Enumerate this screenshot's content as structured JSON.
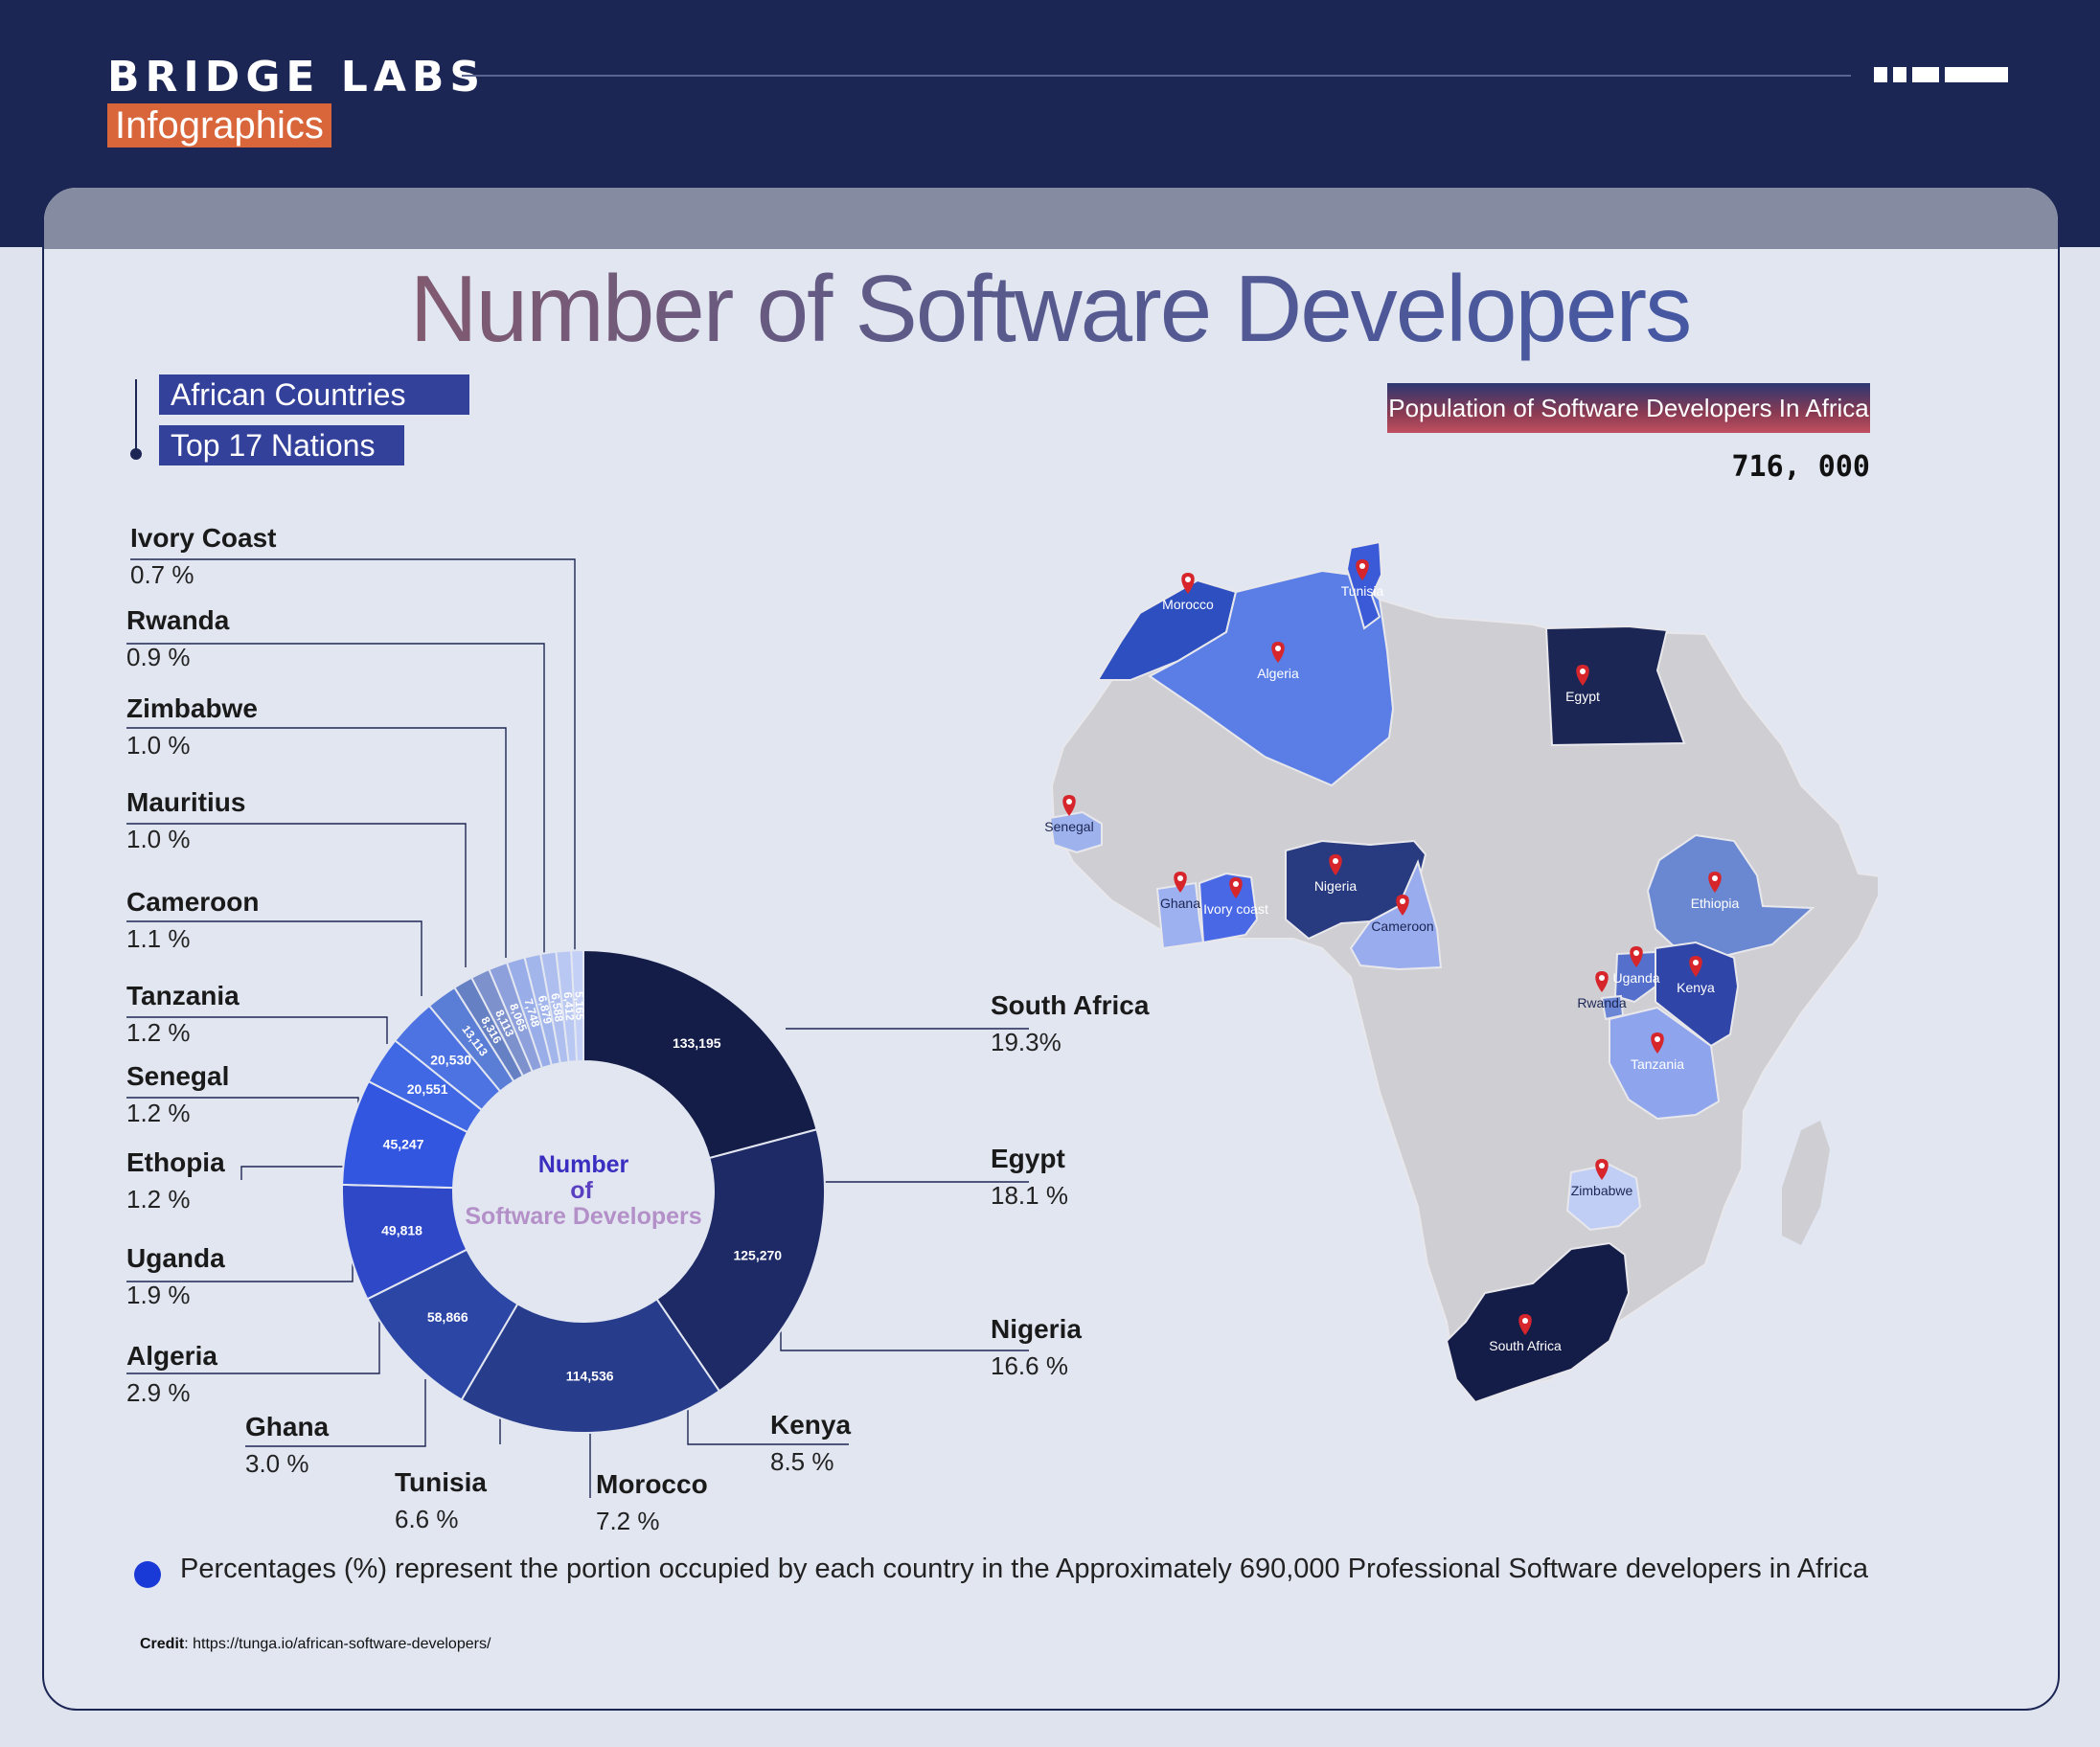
{
  "brand": {
    "name": "BRIDGE LABS",
    "sub": "Infographics"
  },
  "title": "Number of Software Developers",
  "tags": [
    "African Countries",
    "Top 17 Nations"
  ],
  "population": {
    "label": "Population of Software Developers In Africa",
    "value": "716, 000"
  },
  "center_label": {
    "line1": "Number",
    "line2": "of",
    "line3": "Software Developers"
  },
  "chart_data": {
    "type": "pie",
    "variant": "donut",
    "categories": [
      "South Africa",
      "Egypt",
      "Nigeria",
      "Kenya",
      "Morocco",
      "Tunisia",
      "Ghana",
      "Algeria",
      "Uganda",
      "Ethopia",
      "Senegal",
      "Tanzania",
      "Cameroon",
      "Mauritius",
      "Zimbabwe",
      "Rwanda",
      "Ivory Coast"
    ],
    "values": [
      133195,
      125270,
      114536,
      58866,
      49818,
      45247,
      20551,
      20530,
      13113,
      8316,
      8113,
      8065,
      7748,
      6879,
      6588,
      6412,
      5165
    ],
    "value_labels": [
      "133,195",
      "125,270",
      "114,536",
      "58,866",
      "49,818",
      "45,247",
      "20,551",
      "20,530",
      "13,113",
      "8,316",
      "8,113",
      "8,065",
      "7,748",
      "6,879",
      "6,588",
      "6,412",
      "5,165"
    ],
    "percent_labels": [
      "19.3%",
      "18.1 %",
      "16.6 %",
      "8.5 %",
      "7.2 %",
      "6.6 %",
      "3.0 %",
      "2.9 %",
      "1.9 %",
      "1.2 %",
      "1.2 %",
      "1.2 %",
      "1.1 %",
      "1.0 %",
      "1.0 %",
      "0.9 %",
      "0.7 %"
    ],
    "colors": [
      "#141c48",
      "#1e2a66",
      "#283c8c",
      "#2c46a6",
      "#2e48c8",
      "#3356e0",
      "#4068e4",
      "#4d72e2",
      "#5a7dd6",
      "#6680c4",
      "#7d91cc",
      "#8da0dc",
      "#99aee8",
      "#a3b6ec",
      "#aebfef",
      "#b9c8f2",
      "#c4d0f5"
    ],
    "start": "top",
    "direction": "clockwise"
  },
  "map": {
    "title": "",
    "countries": [
      {
        "name": "Morocco",
        "color": "#2e4fc0"
      },
      {
        "name": "Tunisia",
        "color": "#3a5ad8"
      },
      {
        "name": "Algeria",
        "color": "#5a7ee6"
      },
      {
        "name": "Egypt",
        "color": "#1c2654"
      },
      {
        "name": "Senegal",
        "color": "#9eb2ee"
      },
      {
        "name": "Ghana",
        "color": "#9db0ef"
      },
      {
        "name": "Ivory coast",
        "color": "#4868e6"
      },
      {
        "name": "Nigeria",
        "color": "#283a80"
      },
      {
        "name": "Cameroon",
        "color": "#99acee"
      },
      {
        "name": "Ethiopia",
        "color": "#6a88d2"
      },
      {
        "name": "Uganda",
        "color": "#5470cc"
      },
      {
        "name": "Kenya",
        "color": "#2f45a8"
      },
      {
        "name": "Rwanda",
        "color": "#6a86d4"
      },
      {
        "name": "Tanzania",
        "color": "#8ea4ec"
      },
      {
        "name": "Zimbabwe",
        "color": "#c0cef6"
      },
      {
        "name": "South Africa",
        "color": "#141c48"
      }
    ],
    "base_color": "#cfcfd3",
    "pin_color": "#d6262c"
  },
  "note": "Percentages (%) represent the portion occupied by each country in the Approximately 690,000 Professional Software developers in Africa",
  "credit": {
    "label": "Credit",
    "text": ": https://tunga.io/african-software-developers/"
  }
}
